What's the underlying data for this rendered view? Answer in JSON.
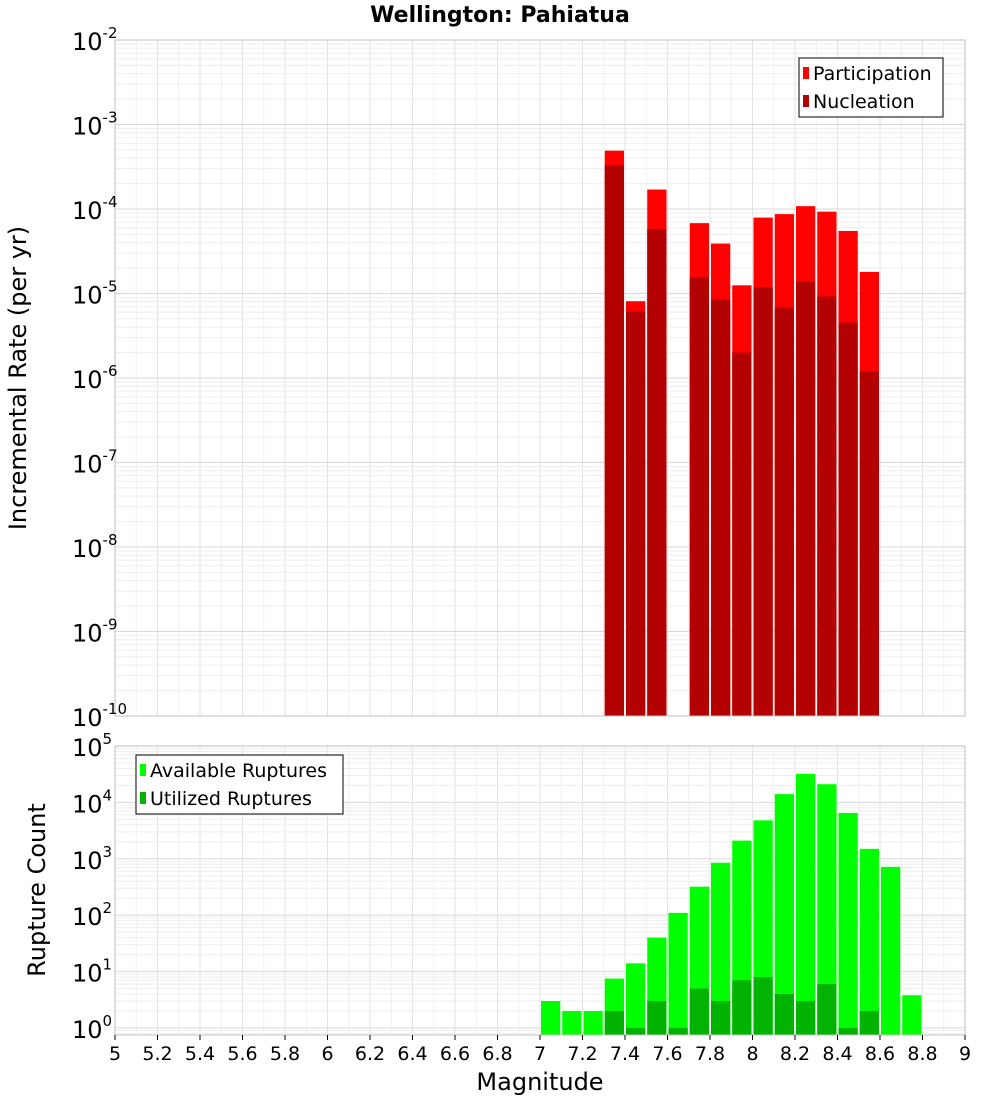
{
  "chart_data": [
    {
      "type": "bar",
      "title": "Wellington: Pahiatua",
      "ylabel": "Incremental Rate (per yr)",
      "yscale": "log",
      "ylim": [
        1e-10,
        0.01
      ],
      "xlim": [
        5,
        9
      ],
      "y_ticks": [
        {
          "base": "10",
          "exp": "-10",
          "value": 1e-10
        },
        {
          "base": "10",
          "exp": "-9",
          "value": 1e-09
        },
        {
          "base": "10",
          "exp": "-8",
          "value": 1e-08
        },
        {
          "base": "10",
          "exp": "-7",
          "value": 1e-07
        },
        {
          "base": "10",
          "exp": "-6",
          "value": 1e-06
        },
        {
          "base": "10",
          "exp": "-5",
          "value": 1e-05
        },
        {
          "base": "10",
          "exp": "-4",
          "value": 0.0001
        },
        {
          "base": "10",
          "exp": "-3",
          "value": 0.001
        },
        {
          "base": "10",
          "exp": "-2",
          "value": 0.01
        }
      ],
      "legend_position": "top-right",
      "bin_width": 0.1,
      "x": [
        7.35,
        7.45,
        7.55,
        7.75,
        7.85,
        7.95,
        8.05,
        8.15,
        8.25,
        8.35,
        8.45,
        8.55
      ],
      "series": [
        {
          "name": "Participation",
          "color": "#ff0000",
          "values": [
            0.00049,
            8.1e-06,
            0.00017,
            6.8e-05,
            3.9e-05,
            1.25e-05,
            7.9e-05,
            8.7e-05,
            0.000108,
            9.3e-05,
            5.5e-05,
            1.8e-05
          ]
        },
        {
          "name": "Nucleation",
          "color": "#b30000",
          "values": [
            0.00033,
            6.1e-06,
            5.8e-05,
            1.55e-05,
            8.5e-06,
            2e-06,
            1.18e-05,
            6.8e-06,
            1.38e-05,
            9.2e-06,
            4.5e-06,
            1.2e-06
          ]
        }
      ]
    },
    {
      "type": "bar",
      "ylabel": "Rupture Count",
      "xlabel": "Magnitude",
      "yscale": "log",
      "ylim": [
        0.75,
        100000
      ],
      "xlim": [
        5,
        9
      ],
      "x_ticks": [
        "5",
        "5.2",
        "5.4",
        "5.6",
        "5.8",
        "6",
        "6.2",
        "6.4",
        "6.6",
        "6.8",
        "7",
        "7.2",
        "7.4",
        "7.6",
        "7.8",
        "8",
        "8.2",
        "8.4",
        "8.6",
        "8.8",
        "9"
      ],
      "y_ticks": [
        {
          "base": "10",
          "exp": "0",
          "value": 1
        },
        {
          "base": "10",
          "exp": "1",
          "value": 10
        },
        {
          "base": "10",
          "exp": "2",
          "value": 100
        },
        {
          "base": "10",
          "exp": "3",
          "value": 1000
        },
        {
          "base": "10",
          "exp": "4",
          "value": 10000
        },
        {
          "base": "10",
          "exp": "5",
          "value": 100000
        }
      ],
      "legend_position": "top-left",
      "bin_width": 0.1,
      "x": [
        7.05,
        7.15,
        7.25,
        7.35,
        7.45,
        7.55,
        7.65,
        7.75,
        7.85,
        7.95,
        8.05,
        8.15,
        8.25,
        8.35,
        8.45,
        8.55,
        8.65,
        8.75
      ],
      "series": [
        {
          "name": "Available Ruptures",
          "color": "#00ff00",
          "values": [
            3,
            2,
            2,
            7.5,
            14,
            40,
            110,
            320,
            850,
            2100,
            4800,
            14000,
            32000,
            21000,
            6500,
            1500,
            720,
            3.8
          ]
        },
        {
          "name": "Utilized Ruptures",
          "color": "#00b300",
          "values": [
            null,
            null,
            null,
            2,
            1,
            3,
            1,
            5,
            3,
            7,
            8,
            4,
            3,
            6,
            1,
            2,
            null,
            null
          ]
        }
      ]
    }
  ]
}
